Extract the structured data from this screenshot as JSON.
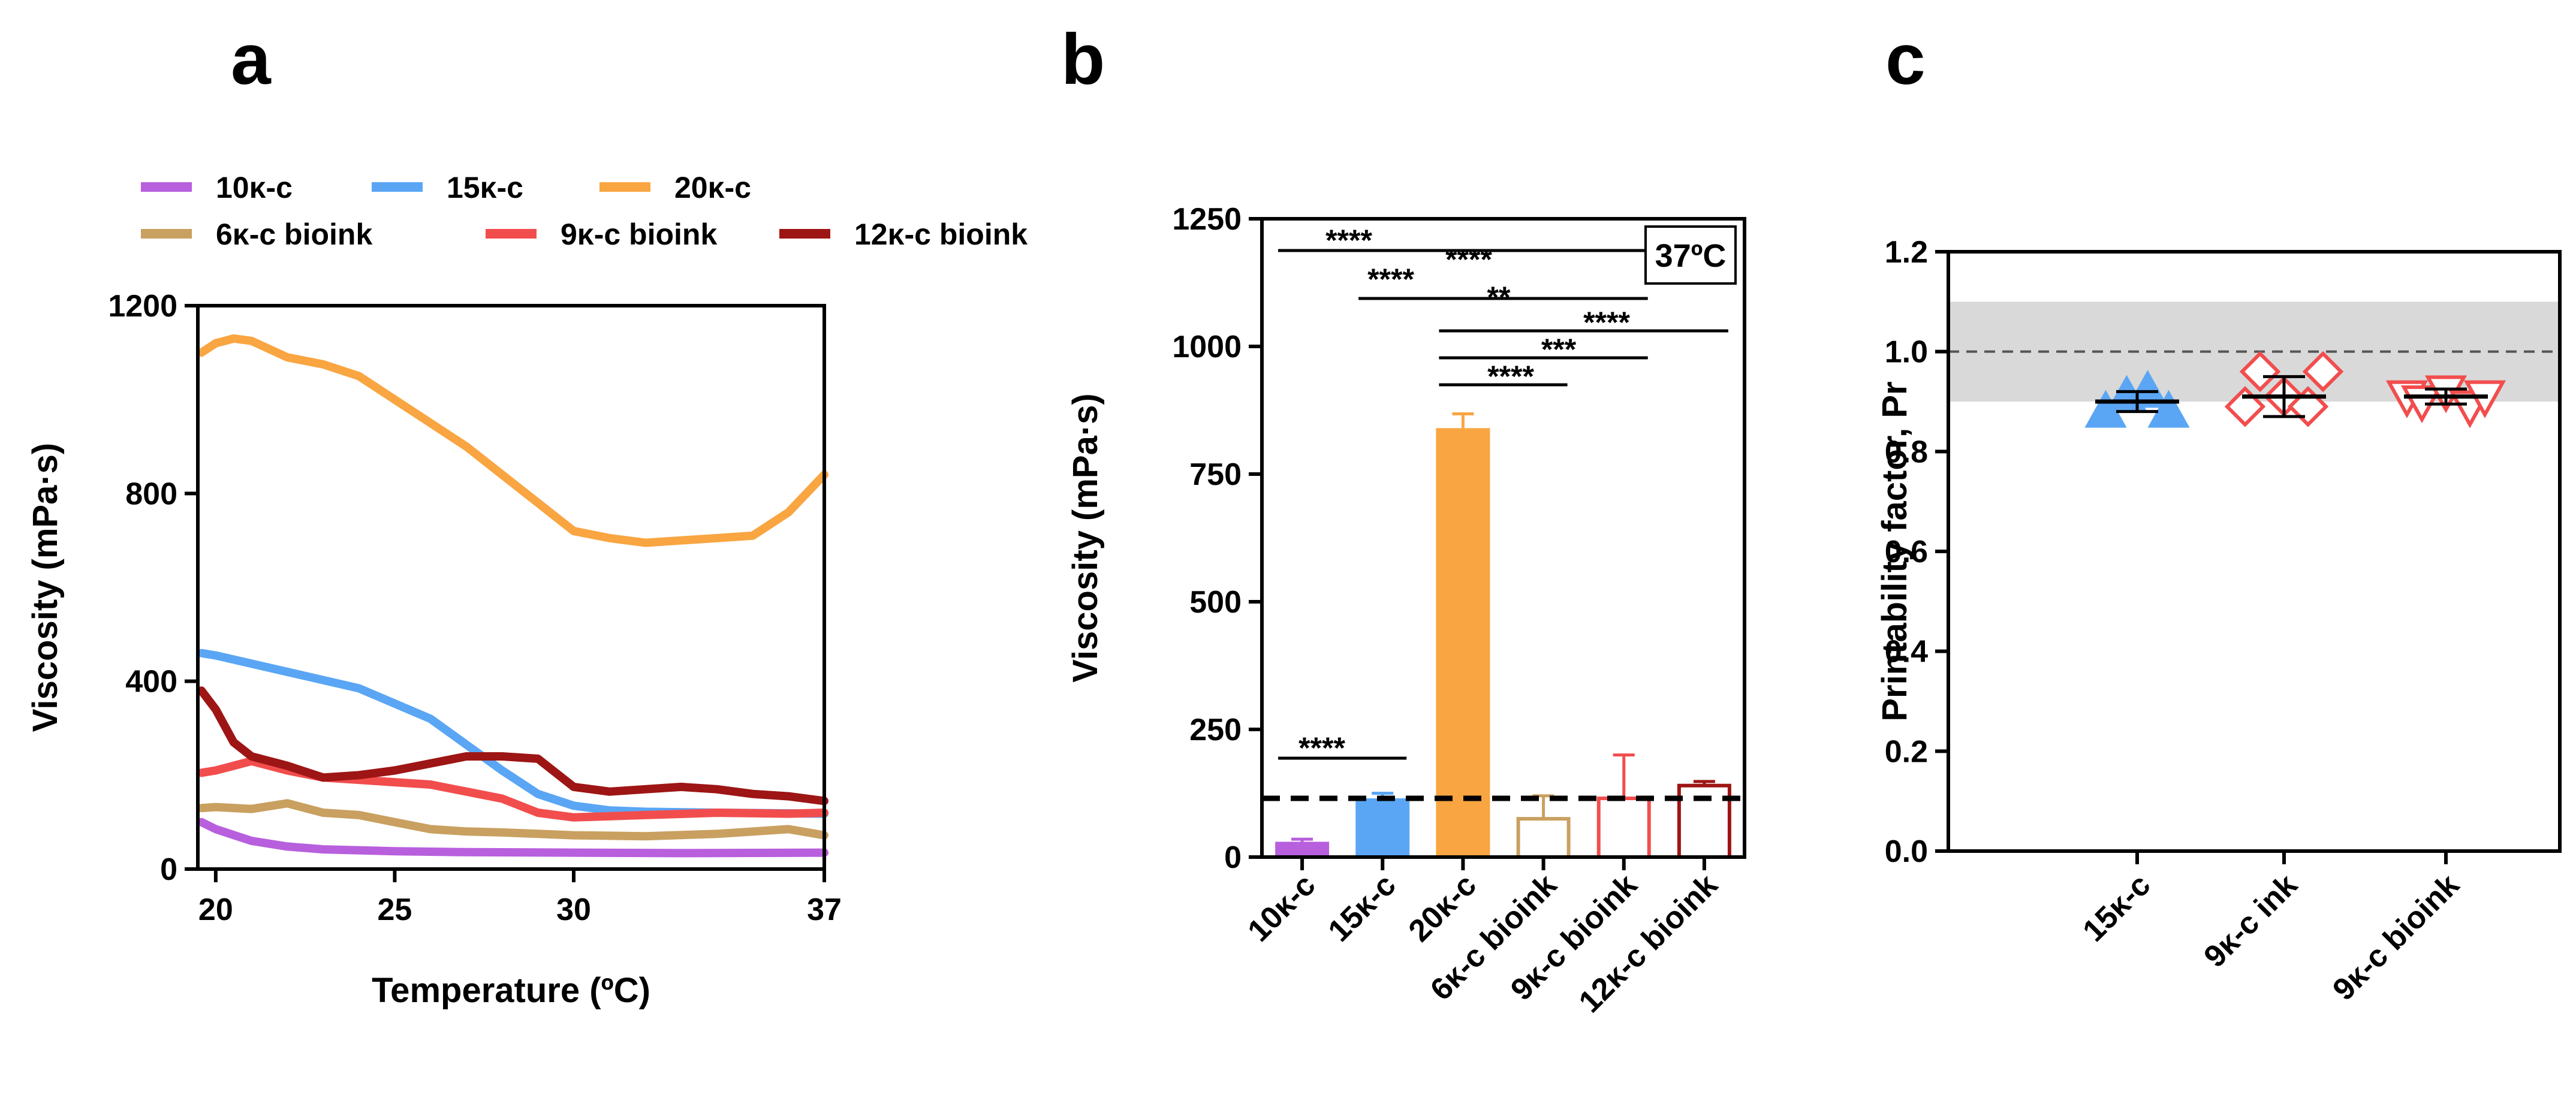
{
  "colors": {
    "c10": "#b85fdd",
    "c15": "#5aa6f5",
    "c20": "#f9a541",
    "c6b": "#c9a060",
    "c9b": "#f24d4d",
    "c12b": "#9e1515",
    "band": "#d9d9d9"
  },
  "chart_data": [
    {
      "panel": "a",
      "type": "line",
      "xlabel": "Temperature (ºC)",
      "ylabel": "Viscosity (mPa·s)",
      "xlim": [
        19.5,
        37
      ],
      "ylim": [
        0,
        1200
      ],
      "xticks": [
        "20",
        "25",
        "30",
        "37"
      ],
      "yticks": [
        "0",
        "400",
        "800",
        "1200"
      ],
      "series": [
        {
          "name": "10κ-c",
          "color": "#b85fdd",
          "x": [
            19.6,
            20,
            21,
            22,
            23,
            25,
            27,
            30,
            33,
            37
          ],
          "y": [
            100,
            85,
            60,
            48,
            42,
            38,
            36,
            35,
            34,
            35
          ]
        },
        {
          "name": "15κ-c",
          "color": "#5aa6f5",
          "x": [
            19.6,
            20,
            22,
            24,
            26,
            27,
            28,
            29,
            30,
            31,
            32,
            34,
            37
          ],
          "y": [
            460,
            455,
            420,
            385,
            320,
            265,
            210,
            160,
            135,
            125,
            122,
            120,
            118
          ]
        },
        {
          "name": "20κ-c",
          "color": "#f9a541",
          "x": [
            19.6,
            20,
            20.5,
            21,
            22,
            23,
            24,
            25,
            26,
            27,
            28,
            29,
            30,
            31,
            32,
            33,
            34,
            35,
            36,
            37
          ],
          "y": [
            1100,
            1120,
            1130,
            1125,
            1090,
            1075,
            1050,
            1000,
            950,
            900,
            840,
            780,
            720,
            705,
            695,
            700,
            705,
            710,
            760,
            840
          ]
        },
        {
          "name": "6κ-c bioink",
          "color": "#c9a060",
          "x": [
            19.6,
            20,
            21,
            22,
            23,
            24,
            25,
            26,
            27,
            28,
            30,
            32,
            34,
            36,
            37
          ],
          "y": [
            130,
            132,
            128,
            140,
            120,
            115,
            100,
            85,
            80,
            78,
            72,
            70,
            75,
            85,
            72
          ]
        },
        {
          "name": "9κ-c bioink",
          "color": "#f24d4d",
          "x": [
            19.6,
            20,
            21,
            22,
            23,
            24,
            25,
            26,
            27,
            28,
            29,
            30,
            32,
            34,
            36,
            37
          ],
          "y": [
            205,
            210,
            230,
            210,
            195,
            190,
            185,
            180,
            165,
            150,
            120,
            110,
            115,
            120,
            118,
            120
          ]
        },
        {
          "name": "12κ-c bioink",
          "color": "#9e1515",
          "x": [
            19.6,
            20,
            20.5,
            21,
            22,
            23,
            24,
            25,
            26,
            27,
            28,
            29,
            30,
            31,
            32,
            33,
            34,
            35,
            36,
            37
          ],
          "y": [
            380,
            340,
            270,
            240,
            220,
            195,
            200,
            210,
            225,
            240,
            240,
            235,
            175,
            165,
            170,
            175,
            170,
            160,
            155,
            145
          ]
        }
      ]
    },
    {
      "panel": "b",
      "type": "bar",
      "ylabel": "Viscosity (mPa·s)",
      "ylim": [
        0,
        1250
      ],
      "yticks": [
        "0",
        "250",
        "500",
        "750",
        "1000",
        "1250"
      ],
      "categories": [
        "10κ-c",
        "15κ-c",
        "20κ-c",
        "6κ-c bioink",
        "9κ-c bioink",
        "12κ-c bioink"
      ],
      "values": [
        30,
        115,
        840,
        75,
        115,
        140
      ],
      "errors": [
        5,
        10,
        28,
        45,
        85,
        8
      ],
      "filled": [
        true,
        true,
        true,
        false,
        false,
        false
      ],
      "colors": [
        "#b85fdd",
        "#5aa6f5",
        "#f9a541",
        "#c9a060",
        "#f24d4d",
        "#9e1515"
      ],
      "threshold": 115,
      "annotation": "37ºC",
      "significance": [
        {
          "from": 0,
          "to": 1,
          "label": "****"
        },
        {
          "from": 0,
          "to": 2,
          "label": "****"
        },
        {
          "from": 0,
          "to": 4,
          "label": "****"
        },
        {
          "from": 1,
          "to": 2,
          "label": "****"
        },
        {
          "from": 1,
          "to": 4,
          "label": "**"
        },
        {
          "from": 2,
          "to": 3,
          "label": "****"
        },
        {
          "from": 2,
          "to": 4,
          "label": "***"
        },
        {
          "from": 2,
          "to": 5,
          "label": "****"
        }
      ]
    },
    {
      "panel": "c",
      "type": "scatter",
      "ylabel": "Printability factor, Pr",
      "ylim": [
        0,
        1.2
      ],
      "yticks": [
        "0.0",
        "0.2",
        "0.4",
        "0.6",
        "0.8",
        "1.0",
        "1.2"
      ],
      "categories": [
        "15κ-c",
        "9κ-c ink",
        "9κ-c bioink"
      ],
      "band": [
        0.9,
        1.1
      ],
      "reference": 1.0,
      "groups": [
        {
          "name": "15κ-c",
          "marker": "triangle-up",
          "filled": true,
          "color": "#5aa6f5",
          "points": [
            0.88,
            0.91,
            0.92,
            0.88
          ],
          "mean": 0.9,
          "sd": 0.02
        },
        {
          "name": "9κ-c ink",
          "marker": "diamond",
          "filled": false,
          "color": "#f24d4d",
          "points": [
            0.89,
            0.96,
            0.91,
            0.89,
            0.96
          ],
          "mean": 0.91,
          "sd": 0.04
        },
        {
          "name": "9κ-c bioink",
          "marker": "triangle-down",
          "filled": false,
          "color": "#f24d4d",
          "points": [
            0.91,
            0.9,
            0.92,
            0.89,
            0.91
          ],
          "mean": 0.91,
          "sd": 0.015
        }
      ]
    }
  ]
}
